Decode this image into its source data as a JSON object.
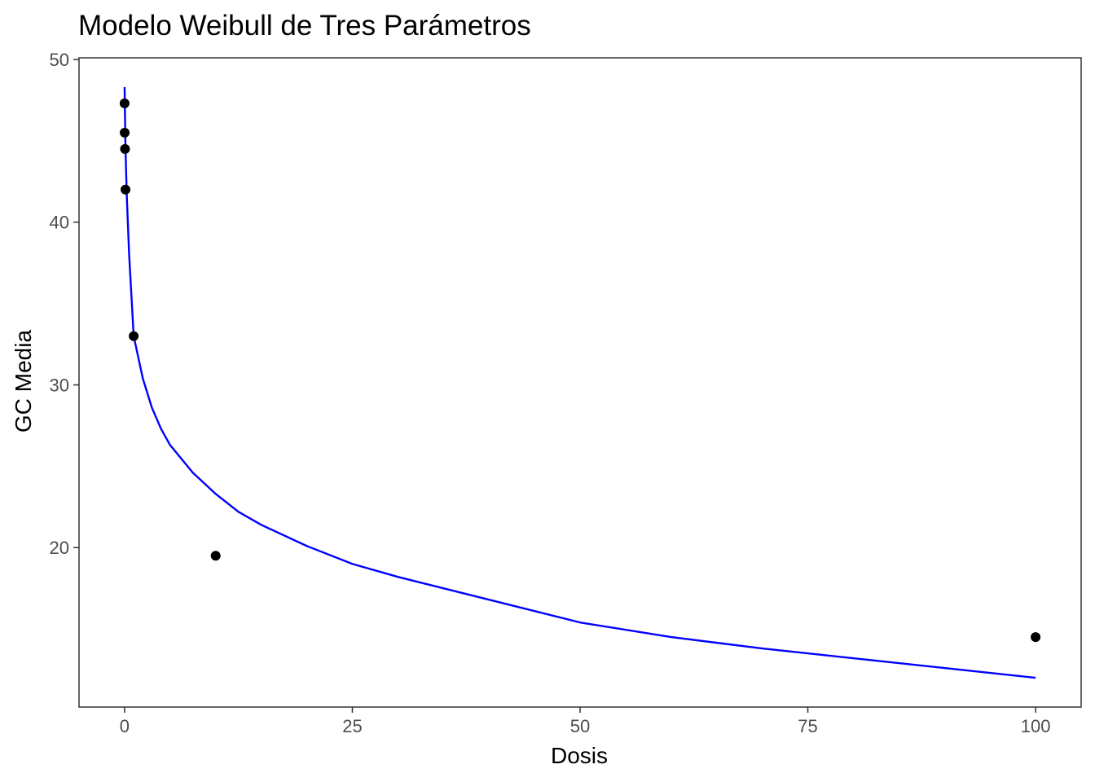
{
  "chart_data": {
    "type": "scatter",
    "title": "Modelo Weibull de Tres Parámetros",
    "xlabel": "Dosis",
    "ylabel": "GC Media",
    "xlim": [
      -5,
      105
    ],
    "ylim": [
      10.2,
      50.1
    ],
    "x_ticks": [
      0,
      25,
      50,
      75,
      100
    ],
    "y_ticks": [
      20,
      30,
      40,
      50
    ],
    "grid": false,
    "legend": "none",
    "points": [
      {
        "x": 0.0,
        "y": 47.3
      },
      {
        "x": 0.01,
        "y": 45.5
      },
      {
        "x": 0.05,
        "y": 44.5
      },
      {
        "x": 0.1,
        "y": 42.0
      },
      {
        "x": 1.0,
        "y": 33.0
      },
      {
        "x": 10.0,
        "y": 19.5
      },
      {
        "x": 100.0,
        "y": 14.5
      }
    ],
    "fitted_curve": {
      "model": "Weibull de tres parámetros",
      "color": "#0000ff",
      "points": [
        {
          "x": 0.0,
          "y": 48.3
        },
        {
          "x": 0.1,
          "y": 44.5
        },
        {
          "x": 0.25,
          "y": 41.5
        },
        {
          "x": 0.5,
          "y": 38.0
        },
        {
          "x": 1.0,
          "y": 33.0
        },
        {
          "x": 2.0,
          "y": 30.4
        },
        {
          "x": 3.0,
          "y": 28.6
        },
        {
          "x": 4.0,
          "y": 27.3
        },
        {
          "x": 5.0,
          "y": 26.3
        },
        {
          "x": 7.5,
          "y": 24.6
        },
        {
          "x": 10.0,
          "y": 23.3
        },
        {
          "x": 12.5,
          "y": 22.2
        },
        {
          "x": 15.0,
          "y": 21.4
        },
        {
          "x": 20.0,
          "y": 20.1
        },
        {
          "x": 25.0,
          "y": 19.0
        },
        {
          "x": 30.0,
          "y": 18.2
        },
        {
          "x": 40.0,
          "y": 16.8
        },
        {
          "x": 50.0,
          "y": 15.4
        },
        {
          "x": 60.0,
          "y": 14.5
        },
        {
          "x": 70.0,
          "y": 13.8
        },
        {
          "x": 80.0,
          "y": 13.2
        },
        {
          "x": 90.0,
          "y": 12.6
        },
        {
          "x": 100.0,
          "y": 12.0
        }
      ]
    },
    "colors": {
      "points": "#000000",
      "curve": "#0000ff",
      "panel_border": "#333333",
      "tick_labels": "#4d4d4d"
    }
  }
}
